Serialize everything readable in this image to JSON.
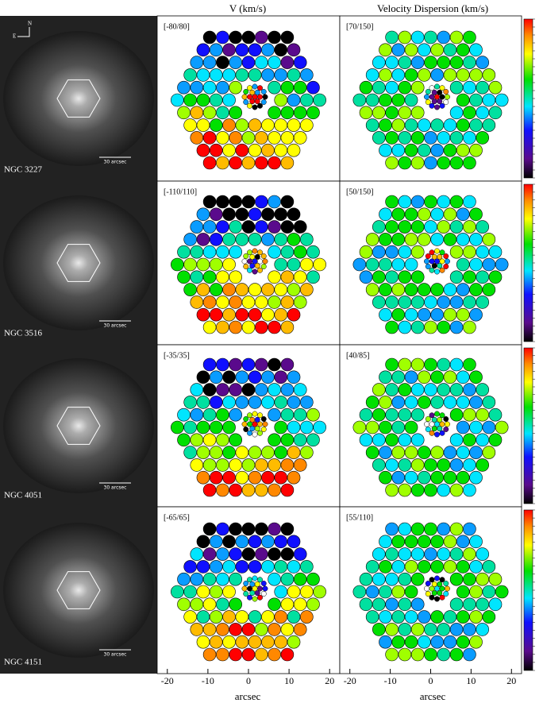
{
  "header": {
    "v_title": "V (km/s)",
    "sigma_title": "Velocity Dispersion (km/s)"
  },
  "compass": {
    "north": "N",
    "east": "E"
  },
  "rows": [
    {
      "galaxy": "NGC 3227",
      "scale_bar": "30 arcsec",
      "v_range": "[-80/80]",
      "sigma_range": "[70/150]"
    },
    {
      "galaxy": "NGC 3516",
      "scale_bar": "30 arcsec",
      "v_range": "[-110/110]",
      "sigma_range": "[50/150]"
    },
    {
      "galaxy": "NGC 4051",
      "scale_bar": "30 arcsec",
      "v_range": "[-35/35]",
      "sigma_range": "[40/85]"
    },
    {
      "galaxy": "NGC 4151",
      "scale_bar": "30 arcsec",
      "v_range": "[-65/65]",
      "sigma_range": "[55/110]"
    }
  ],
  "x_axis": {
    "label": "arcsec",
    "xlim": [
      -22.5,
      22.5
    ],
    "ticks": [
      -20,
      -10,
      0,
      10,
      20
    ]
  }
}
